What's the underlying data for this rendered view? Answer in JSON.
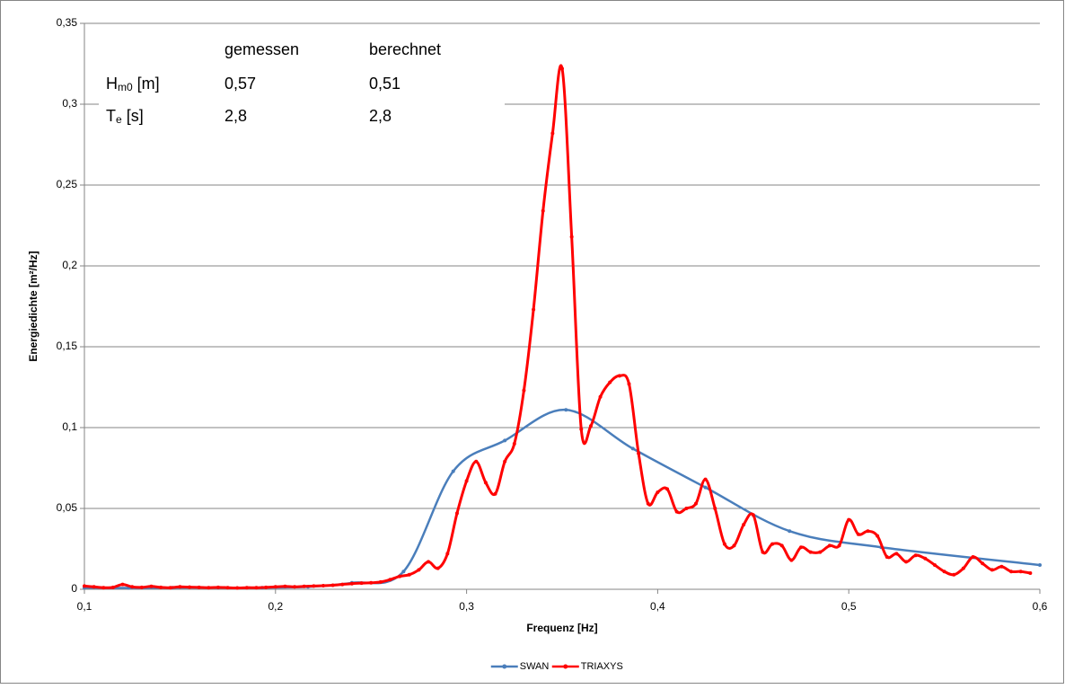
{
  "chart_data": {
    "type": "line",
    "x_label": "Frequenz [Hz]",
    "y_label": "Energiedichte [m²/Hz]",
    "xlim": [
      0.1,
      0.6
    ],
    "xticks": [
      {
        "value": 0.1,
        "label": "0,1"
      },
      {
        "value": 0.2,
        "label": "0,2"
      },
      {
        "value": 0.3,
        "label": "0,3"
      },
      {
        "value": 0.4,
        "label": "0,4"
      },
      {
        "value": 0.5,
        "label": "0,5"
      },
      {
        "value": 0.6,
        "label": "0,6"
      }
    ],
    "ylim": [
      0,
      0.35
    ],
    "yticks": [
      0,
      {
        "value": 0.05,
        "label": "0,05"
      },
      {
        "value": 0.1,
        "label": "0,1"
      },
      {
        "value": 0.15,
        "label": "0,15"
      },
      {
        "value": 0.2,
        "label": "0,2"
      },
      {
        "value": 0.25,
        "label": "0,25"
      },
      {
        "value": 0.3,
        "label": "0,3"
      },
      {
        "value": 0.35,
        "label": "0,35"
      }
    ],
    "grid": true,
    "legend": "bottom",
    "annotation": {
      "columns": [
        "gemessen",
        "berechnet"
      ],
      "rows": [
        {
          "symbol": "H",
          "sub": "m0",
          "unit": "[m]",
          "gemessen": "0,57",
          "berechnet": "0,51"
        },
        {
          "symbol": "T",
          "sub": "e",
          "unit": "[s]",
          "gemessen": "2,8",
          "berechnet": "2,8"
        }
      ]
    },
    "series": [
      {
        "name": "SWAN",
        "color": "#4a7ebb",
        "x": [
          0.1,
          0.123,
          0.146,
          0.17,
          0.193,
          0.217,
          0.24,
          0.267,
          0.293,
          0.32,
          0.352,
          0.387,
          0.425,
          0.469,
          0.517,
          0.6
        ],
        "values": [
          0.001,
          0.0008,
          0.001,
          0.001,
          0.001,
          0.0015,
          0.004,
          0.011,
          0.073,
          0.092,
          0.111,
          0.087,
          0.063,
          0.036,
          0.026,
          0.015
        ]
      },
      {
        "name": "TRIAXYS",
        "color": "#ff0000",
        "x": [
          0.1,
          0.105,
          0.11,
          0.115,
          0.12,
          0.125,
          0.13,
          0.135,
          0.14,
          0.145,
          0.15,
          0.155,
          0.16,
          0.165,
          0.17,
          0.175,
          0.18,
          0.185,
          0.19,
          0.195,
          0.2,
          0.205,
          0.21,
          0.215,
          0.22,
          0.225,
          0.23,
          0.235,
          0.24,
          0.245,
          0.25,
          0.255,
          0.26,
          0.265,
          0.27,
          0.275,
          0.28,
          0.285,
          0.29,
          0.295,
          0.3,
          0.305,
          0.31,
          0.315,
          0.32,
          0.325,
          0.33,
          0.335,
          0.34,
          0.345,
          0.35,
          0.355,
          0.36,
          0.365,
          0.37,
          0.375,
          0.38,
          0.385,
          0.39,
          0.395,
          0.4,
          0.405,
          0.41,
          0.415,
          0.42,
          0.425,
          0.43,
          0.435,
          0.44,
          0.445,
          0.45,
          0.455,
          0.46,
          0.465,
          0.47,
          0.475,
          0.48,
          0.485,
          0.49,
          0.495,
          0.5,
          0.505,
          0.51,
          0.515,
          0.52,
          0.525,
          0.53,
          0.535,
          0.54,
          0.545,
          0.55,
          0.555,
          0.56,
          0.565,
          0.57,
          0.575,
          0.58,
          0.585,
          0.59,
          0.595
        ],
        "values": [
          0.002,
          0.0015,
          0.001,
          0.0012,
          0.003,
          0.0015,
          0.0012,
          0.0018,
          0.0012,
          0.001,
          0.0015,
          0.0013,
          0.0012,
          0.001,
          0.0012,
          0.001,
          0.0008,
          0.001,
          0.001,
          0.0012,
          0.0015,
          0.0018,
          0.0015,
          0.0018,
          0.002,
          0.0022,
          0.0025,
          0.003,
          0.0035,
          0.0038,
          0.004,
          0.0045,
          0.006,
          0.008,
          0.009,
          0.012,
          0.017,
          0.013,
          0.022,
          0.047,
          0.067,
          0.079,
          0.066,
          0.059,
          0.079,
          0.09,
          0.123,
          0.173,
          0.234,
          0.282,
          0.322,
          0.218,
          0.099,
          0.101,
          0.119,
          0.128,
          0.132,
          0.127,
          0.084,
          0.053,
          0.06,
          0.062,
          0.048,
          0.05,
          0.053,
          0.068,
          0.05,
          0.028,
          0.027,
          0.04,
          0.046,
          0.023,
          0.028,
          0.027,
          0.018,
          0.026,
          0.023,
          0.023,
          0.027,
          0.027,
          0.043,
          0.034,
          0.036,
          0.033,
          0.02,
          0.022,
          0.017,
          0.021,
          0.019,
          0.015,
          0.011,
          0.009,
          0.013,
          0.02,
          0.016,
          0.012,
          0.014,
          0.011,
          0.011,
          0.01
        ]
      }
    ]
  }
}
